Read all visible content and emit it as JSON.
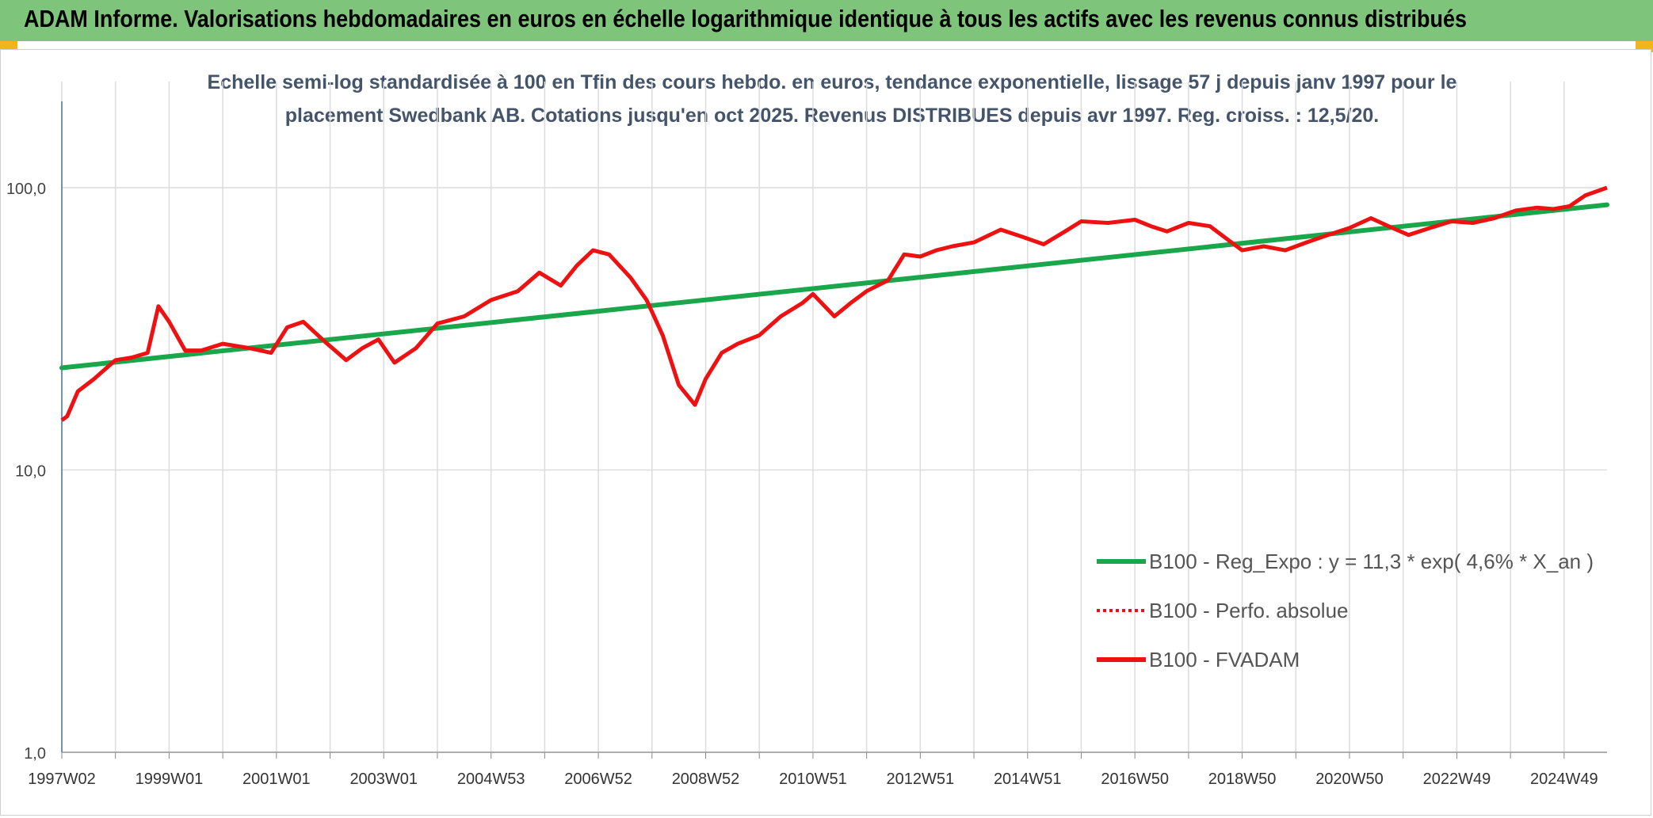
{
  "header": {
    "title": "ADAM Informe. Valorisations hebdomadaires en euros en échelle logarithmique identique à tous les actifs avec les revenus connus distribués"
  },
  "colors": {
    "header_bg": "#7ec57b",
    "corner_accent": "#f2b31b",
    "trend": "#1aa64a",
    "fvadam": "#ee1111",
    "perfo": "#ee1111",
    "subtitle_text": "#44546a",
    "grid": "#dcdcdc"
  },
  "chart_data": {
    "type": "line",
    "title_line1": "Echelle semi-log standardisée à 100 en Tfin des cours hebdo. en euros, tendance exponentielle, lissage 57 j depuis janv 1997 pour le",
    "title_line2": "placement Swedbank AB. Cotations jusqu'en oct 2025. Revenus DISTRIBUES depuis avr 1997. Reg. croiss. : 12,5/20.",
    "y_scale": "log",
    "ylim": [
      1,
      100
    ],
    "xlim": [
      1997.0,
      2025.8
    ],
    "grid": true,
    "legend_position": "bottom-right",
    "y_tick_labels": [
      "1,0",
      "10,0",
      "100,0"
    ],
    "x_tick_labels": [
      "1997W02",
      "1999W01",
      "2001W01",
      "2003W01",
      "2004W53",
      "2006W52",
      "2008W52",
      "2010W51",
      "2012W51",
      "2014W51",
      "2016W50",
      "2018W50",
      "2020W50",
      "2022W49",
      "2024W49"
    ],
    "x_tick_years": [
      1997.0,
      1999.0,
      2001.0,
      2003.0,
      2005.0,
      2007.0,
      2009.0,
      2011.0,
      2013.0,
      2015.0,
      2017.0,
      2019.0,
      2021.0,
      2023.0,
      2025.0
    ],
    "series": [
      {
        "name": "B100 - Reg_Expo : y = 11,3 * exp( 4,6% *  X_an )",
        "style": "trend",
        "x": [
          1997.0,
          2025.8
        ],
        "y": [
          23.0,
          87.0
        ]
      },
      {
        "name": "B100 - Perfo. absolue",
        "style": "dotted",
        "x": [
          1997.0,
          1997.1,
          1997.3,
          1997.6,
          1998.0,
          1998.3,
          1998.6,
          1998.8,
          1999.0,
          1999.3,
          1999.6,
          2000.0,
          2000.5,
          2000.9,
          2001.2,
          2001.5,
          2001.9,
          2002.3,
          2002.6,
          2002.9,
          2003.2,
          2003.6,
          2004.0,
          2004.5,
          2005.0,
          2005.5,
          2005.9,
          2006.3,
          2006.6,
          2006.9,
          2007.2,
          2007.6,
          2007.9,
          2008.2,
          2008.5,
          2008.8,
          2009.0,
          2009.3,
          2009.6,
          2010.0,
          2010.4,
          2010.8,
          2011.0,
          2011.4,
          2011.7,
          2012.0,
          2012.4,
          2012.7,
          2013.0,
          2013.3,
          2013.6,
          2014.0,
          2014.5,
          2014.9,
          2015.3,
          2015.7,
          2016.0,
          2016.5,
          2017.0,
          2017.3,
          2017.6,
          2018.0,
          2018.4,
          2018.8,
          2019.0,
          2019.4,
          2019.8,
          2020.2,
          2020.6,
          2021.0,
          2021.4,
          2021.8,
          2022.1,
          2022.5,
          2022.9,
          2023.3,
          2023.7,
          2024.1,
          2024.5,
          2024.8,
          2025.1,
          2025.4,
          2025.8
        ],
        "y": [
          15.0,
          15.5,
          19.0,
          21.0,
          24.5,
          25.0,
          26.0,
          38.0,
          33.5,
          26.5,
          26.5,
          28.0,
          27.0,
          26.0,
          32.0,
          33.5,
          28.5,
          24.5,
          27.0,
          29.0,
          24.0,
          27.0,
          33.0,
          35.0,
          40.0,
          43.0,
          50.0,
          45.0,
          53.0,
          60.0,
          58.0,
          48.0,
          40.0,
          30.0,
          20.0,
          17.0,
          21.0,
          26.0,
          28.0,
          30.0,
          35.0,
          39.0,
          42.0,
          35.0,
          39.0,
          43.0,
          47.0,
          58.0,
          57.0,
          60.0,
          62.0,
          64.0,
          71.0,
          67.0,
          63.0,
          70.0,
          76.0,
          75.0,
          77.0,
          73.0,
          70.0,
          75.0,
          73.0,
          64.0,
          60.0,
          62.0,
          60.0,
          64.0,
          68.0,
          72.0,
          78.0,
          72.0,
          68.0,
          72.0,
          76.0,
          75.0,
          78.0,
          83.0,
          85.0,
          84.0,
          86.0,
          94.0,
          100.0
        ]
      },
      {
        "name": "B100 - FVADAM",
        "style": "solid",
        "x": [
          1997.0,
          1997.1,
          1997.3,
          1997.6,
          1998.0,
          1998.3,
          1998.6,
          1998.8,
          1999.0,
          1999.3,
          1999.6,
          2000.0,
          2000.5,
          2000.9,
          2001.2,
          2001.5,
          2001.9,
          2002.3,
          2002.6,
          2002.9,
          2003.2,
          2003.6,
          2004.0,
          2004.5,
          2005.0,
          2005.5,
          2005.9,
          2006.3,
          2006.6,
          2006.9,
          2007.2,
          2007.6,
          2007.9,
          2008.2,
          2008.5,
          2008.8,
          2009.0,
          2009.3,
          2009.6,
          2010.0,
          2010.4,
          2010.8,
          2011.0,
          2011.4,
          2011.7,
          2012.0,
          2012.4,
          2012.7,
          2013.0,
          2013.3,
          2013.6,
          2014.0,
          2014.5,
          2014.9,
          2015.3,
          2015.7,
          2016.0,
          2016.5,
          2017.0,
          2017.3,
          2017.6,
          2018.0,
          2018.4,
          2018.8,
          2019.0,
          2019.4,
          2019.8,
          2020.2,
          2020.6,
          2021.0,
          2021.4,
          2021.8,
          2022.1,
          2022.5,
          2022.9,
          2023.3,
          2023.7,
          2024.1,
          2024.5,
          2024.8,
          2025.1,
          2025.4,
          2025.8
        ],
        "y": [
          15.0,
          15.5,
          19.0,
          21.0,
          24.5,
          25.0,
          26.0,
          38.0,
          33.5,
          26.5,
          26.5,
          28.0,
          27.0,
          26.0,
          32.0,
          33.5,
          28.5,
          24.5,
          27.0,
          29.0,
          24.0,
          27.0,
          33.0,
          35.0,
          40.0,
          43.0,
          50.0,
          45.0,
          53.0,
          60.0,
          58.0,
          48.0,
          40.0,
          30.0,
          20.0,
          17.0,
          21.0,
          26.0,
          28.0,
          30.0,
          35.0,
          39.0,
          42.0,
          35.0,
          39.0,
          43.0,
          47.0,
          58.0,
          57.0,
          60.0,
          62.0,
          64.0,
          71.0,
          67.0,
          63.0,
          70.0,
          76.0,
          75.0,
          77.0,
          73.0,
          70.0,
          75.0,
          73.0,
          64.0,
          60.0,
          62.0,
          60.0,
          64.0,
          68.0,
          72.0,
          78.0,
          72.0,
          68.0,
          72.0,
          76.0,
          75.0,
          78.0,
          83.0,
          85.0,
          84.0,
          86.0,
          94.0,
          100.0
        ]
      }
    ]
  }
}
